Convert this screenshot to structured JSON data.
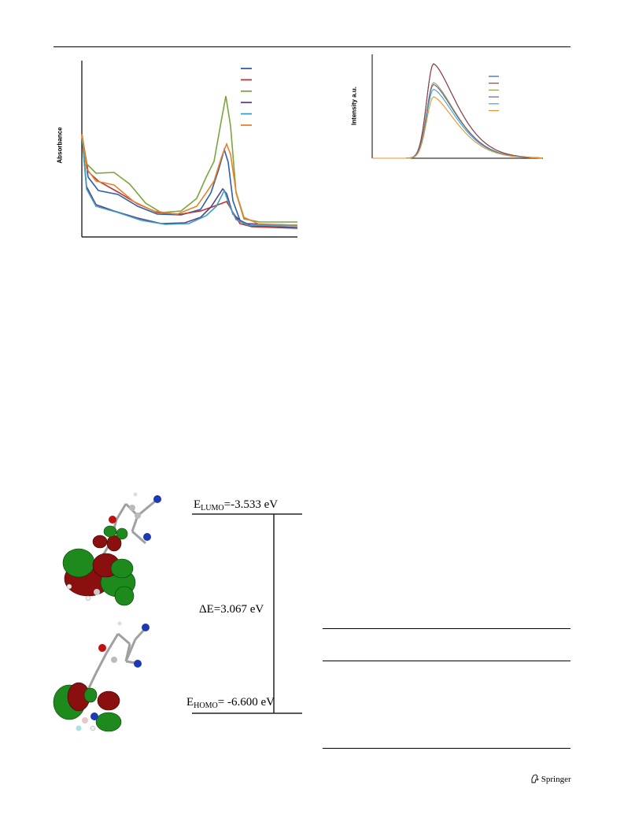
{
  "header": {},
  "figure_absorbance": {
    "ylabel": "Absorbance",
    "colors": [
      "#2f5fa8",
      "#c03330",
      "#7aa63a",
      "#5a3f8f",
      "#3aa0c0",
      "#e8822e"
    ]
  },
  "figure_emission": {
    "ylabel": "Intensity a.u.",
    "colors": [
      "#2f5fa8",
      "#9b3a3a",
      "#8ca44a",
      "#6e5aa0",
      "#3aa8c8",
      "#e8922e"
    ]
  },
  "energy_diagram": {
    "lumo_prefix": "E",
    "lumo_sub": "LUMO",
    "lumo_value": "=-3.533 eV",
    "gap_label": "ΔE=3.067 eV",
    "homo_prefix": "E",
    "homo_sub": "HOMO",
    "homo_value": "= -6.600 eV"
  },
  "footer": {
    "publisher": "Springer",
    "icon": "springer-horse-icon"
  }
}
